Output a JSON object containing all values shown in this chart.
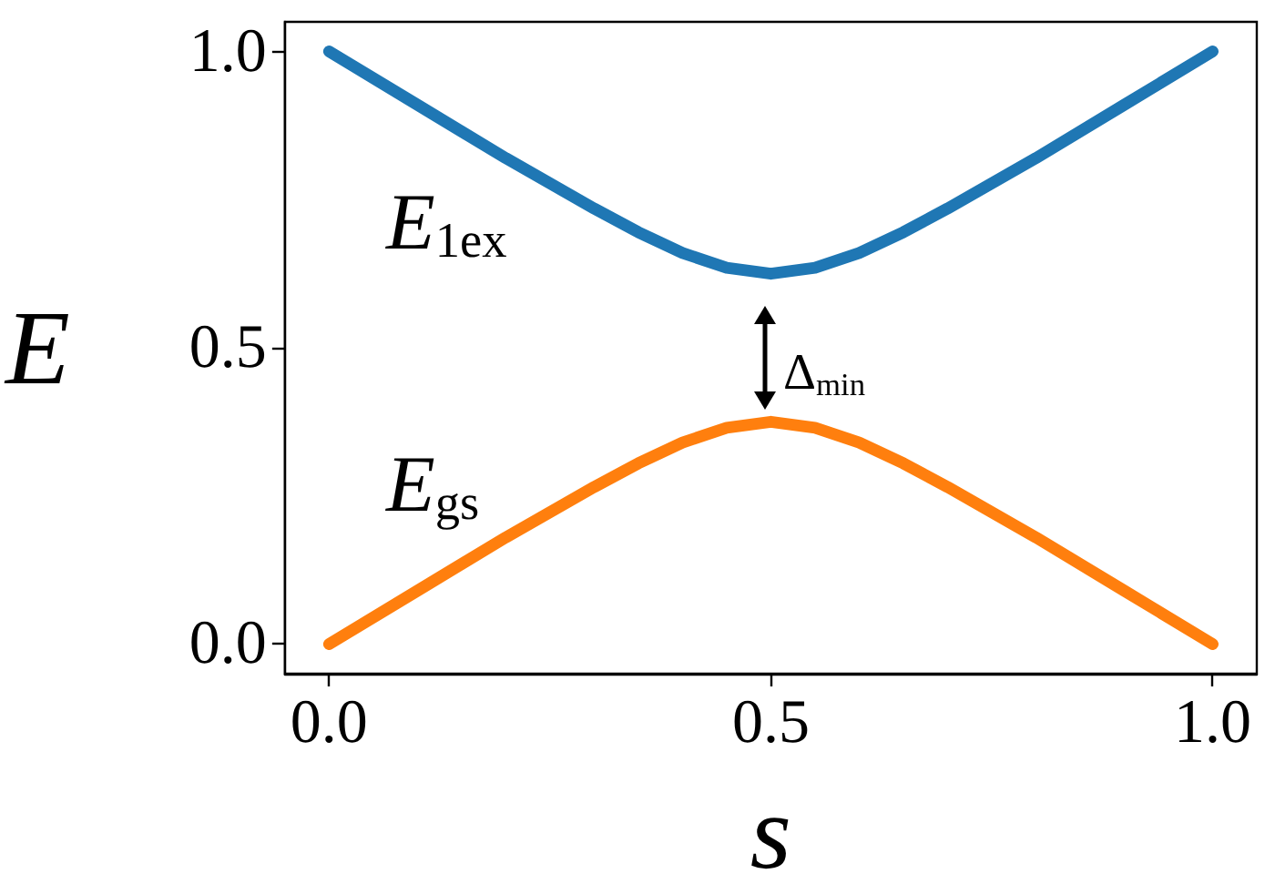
{
  "chart_data": {
    "type": "line",
    "xlabel": "s",
    "ylabel": "E",
    "x": [
      0,
      0.1,
      0.2,
      0.3,
      0.35,
      0.4,
      0.45,
      0.5,
      0.55,
      0.6,
      0.65,
      0.7,
      0.8,
      0.9,
      1.0
    ],
    "series": [
      {
        "color": "#1f77b4",
        "values": [
          1.0,
          0.91,
          0.82,
          0.735,
          0.695,
          0.66,
          0.635,
          0.625,
          0.635,
          0.66,
          0.695,
          0.735,
          0.82,
          0.91,
          1.0
        ]
      },
      {
        "color": "#ff7f0e",
        "values": [
          0.0,
          0.09,
          0.18,
          0.265,
          0.305,
          0.34,
          0.365,
          0.375,
          0.365,
          0.34,
          0.305,
          0.265,
          0.18,
          0.09,
          0.0
        ]
      }
    ],
    "xlim": [
      -0.05,
      1.05
    ],
    "ylim": [
      -0.05,
      1.05
    ],
    "xticks": [
      {
        "value": 0,
        "label": "0.0"
      },
      {
        "value": 0.5,
        "label": "0.5"
      },
      {
        "value": 1,
        "label": "1.0"
      }
    ],
    "yticks": [
      {
        "value": 0,
        "label": "0.0"
      },
      {
        "value": 0.5,
        "label": "0.5"
      },
      {
        "value": 1,
        "label": "1.0"
      }
    ],
    "grid": false,
    "marker": "none",
    "line_style": "solid",
    "annotations": [
      "E$_{1ex}$",
      "E$_{gs}$",
      "Δ$_{min}$"
    ]
  }
}
